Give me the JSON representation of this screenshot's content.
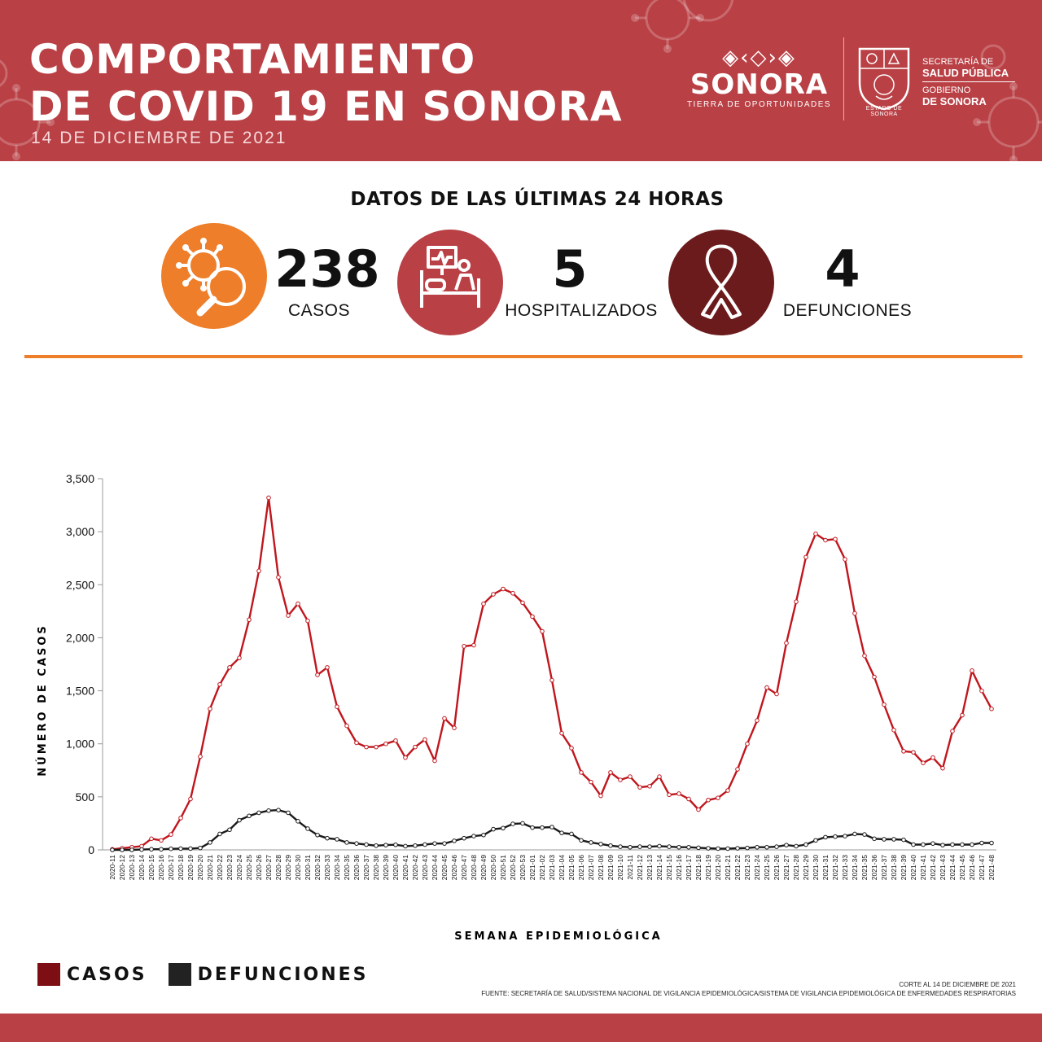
{
  "header": {
    "title_line1": "COMPORTAMIENTO",
    "title_line2": "DE COVID 19 EN SONORA",
    "date": "14 DE DICIEMBRE DE 2021",
    "brand": {
      "pattern": "◈‹◇›◈",
      "name": "SONORA",
      "tagline": "TIERRA DE OPORTUNIDADES",
      "seal_caption": "ESTADO DE SONORA",
      "secretaria_line1": "SECRETARÍA DE",
      "secretaria_line2": "SALUD PÚBLICA",
      "gobierno_line1": "GOBIERNO",
      "gobierno_line2": "DE SONORA"
    },
    "color": "#b94045"
  },
  "kpis": {
    "heading": "DATOS DE LAS ÚLTIMAS 24 HORAS",
    "items": [
      {
        "icon": "virus-magnifier-icon",
        "value": "238",
        "label": "CASOS",
        "color": "#ee7e2a"
      },
      {
        "icon": "hospital-bed-icon",
        "value": "5",
        "label": "HOSPITALIZADOS",
        "color": "#b94045"
      },
      {
        "icon": "ribbon-icon",
        "value": "4",
        "label": "DEFUNCIONES",
        "color": "#6b1b1c"
      }
    ]
  },
  "chart_data": {
    "type": "line",
    "xlabel": "SEMANA EPIDEMIOLÓGICA",
    "ylabel": "NÚMERO DE CASOS",
    "ylim": [
      0,
      3500
    ],
    "yticks": [
      0,
      500,
      1000,
      1500,
      2000,
      2500,
      3000,
      3500
    ],
    "ytick_labels": [
      "0",
      "500",
      "1,000",
      "1,500",
      "2,000",
      "2,500",
      "3,000",
      "3,500"
    ],
    "grid": false,
    "legend": "bottom-left",
    "categories": [
      "2020-11",
      "2020-12",
      "2020-13",
      "2020-14",
      "2020-15",
      "2020-16",
      "2020-17",
      "2020-18",
      "2020-19",
      "2020-20",
      "2020-21",
      "2020-22",
      "2020-23",
      "2020-24",
      "2020-25",
      "2020-26",
      "2020-27",
      "2020-28",
      "2020-29",
      "2020-30",
      "2020-31",
      "2020-32",
      "2020-33",
      "2020-34",
      "2020-35",
      "2020-36",
      "2020-37",
      "2020-38",
      "2020-39",
      "2020-40",
      "2020-41",
      "2020-42",
      "2020-43",
      "2020-44",
      "2020-45",
      "2020-46",
      "2020-47",
      "2020-48",
      "2020-49",
      "2020-50",
      "2020-51",
      "2020-52",
      "2020-53",
      "2021-01",
      "2021-02",
      "2021-03",
      "2021-04",
      "2021-05",
      "2021-06",
      "2021-07",
      "2021-08",
      "2021-09",
      "2021-10",
      "2021-11",
      "2021-12",
      "2021-13",
      "2021-14",
      "2021-15",
      "2021-16",
      "2021-17",
      "2021-18",
      "2021-19",
      "2021-20",
      "2021-21",
      "2021-22",
      "2021-23",
      "2021-24",
      "2021-25",
      "2021-26",
      "2021-27",
      "2021-28",
      "2021-29",
      "2021-30",
      "2021-31",
      "2021-32",
      "2021-33",
      "2021-34",
      "2021-35",
      "2021-36",
      "2021-37",
      "2021-38",
      "2021-39",
      "2021-40",
      "2021-41",
      "2021-42",
      "2021-43",
      "2021-44",
      "2021-45",
      "2021-46",
      "2021-47",
      "2021-48"
    ],
    "series": [
      {
        "name": "CASOS",
        "color": "#c0161d",
        "values": [
          5,
          15,
          25,
          35,
          105,
          90,
          145,
          300,
          480,
          880,
          1330,
          1560,
          1720,
          1810,
          2170,
          2630,
          3320,
          2570,
          2210,
          2320,
          2160,
          1650,
          1720,
          1350,
          1170,
          1010,
          970,
          970,
          1000,
          1030,
          870,
          970,
          1040,
          840,
          1240,
          1150,
          1920,
          1930,
          2320,
          2410,
          2460,
          2420,
          2330,
          2200,
          2060,
          1600,
          1100,
          960,
          730,
          640,
          510,
          730,
          660,
          690,
          590,
          600,
          690,
          520,
          530,
          480,
          380,
          470,
          490,
          560,
          760,
          1000,
          1220,
          1530,
          1470,
          1950,
          2340,
          2760,
          2980,
          2920,
          2930,
          2740,
          2230,
          1830,
          1630,
          1370,
          1130,
          930,
          920,
          820,
          870,
          770,
          1120,
          1270,
          1690,
          1500,
          1330
        ]
      },
      {
        "name": "DEFUNCIONES",
        "color": "#1a1a1a",
        "values": [
          0,
          0,
          0,
          3,
          6,
          6,
          10,
          12,
          12,
          18,
          70,
          150,
          190,
          280,
          320,
          350,
          370,
          375,
          350,
          270,
          200,
          140,
          110,
          100,
          70,
          60,
          50,
          40,
          45,
          48,
          35,
          40,
          50,
          60,
          60,
          85,
          110,
          130,
          140,
          195,
          205,
          245,
          250,
          210,
          210,
          215,
          160,
          150,
          90,
          70,
          55,
          40,
          30,
          25,
          30,
          30,
          35,
          30,
          25,
          25,
          20,
          15,
          12,
          12,
          15,
          18,
          25,
          25,
          30,
          45,
          35,
          50,
          90,
          120,
          125,
          130,
          150,
          145,
          105,
          100,
          100,
          95,
          50,
          50,
          60,
          45,
          50,
          50,
          50,
          65,
          65
        ]
      }
    ]
  },
  "legend": {
    "items": [
      {
        "label": "CASOS",
        "color": "#7d0e13"
      },
      {
        "label": "DEFUNCIONES",
        "color": "#222222"
      }
    ]
  },
  "footer": {
    "corte": "CORTE AL 14 DE DICIEMBRE DE 2021",
    "fuente": "FUENTE: SECRETARÍA DE SALUD/SISTEMA NACIONAL DE VIGILANCIA EPIDEMIOLÓGICA/SISTEMA DE VIGILANCIA EPIDEMIOLÓGICA DE ENFERMEDADES RESPIRATORIAS"
  }
}
